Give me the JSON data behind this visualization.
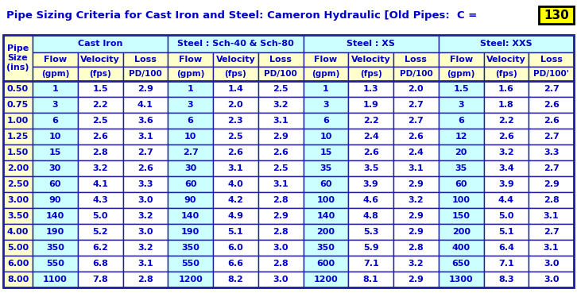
{
  "title": "Pipe Sizing Criteria for Cast Iron and Steel: Cameron Hydraulic [Old Pipes:  C =",
  "c_value": "130",
  "col_groups": [
    {
      "label": "Cast Iron",
      "span": 3
    },
    {
      "label": "Steel : Sch-40 & Sch-80",
      "span": 3
    },
    {
      "label": "Steel : XS",
      "span": 3
    },
    {
      "label": "Steel: XXS",
      "span": 3
    }
  ],
  "sub_headers": [
    "Flow",
    "Velocity",
    "Loss",
    "Flow",
    "Velocity",
    "Loss",
    "Flow",
    "Velocity",
    "Loss",
    "Flow",
    "Velocity",
    "Loss"
  ],
  "sub_headers2": [
    "(gpm)",
    "(fps)",
    "PD/100",
    "(gpm)",
    "(fps)",
    "PD/100",
    "(gpm)",
    "(fps)",
    "PD/100",
    "(gpm)",
    "(fps)",
    "PD/100'"
  ],
  "pipe_sizes": [
    "0.50",
    "0.75",
    "1.00",
    "1.25",
    "1.50",
    "2.00",
    "2.50",
    "3.00",
    "3.50",
    "4.00",
    "5.00",
    "6.00",
    "8.00"
  ],
  "data": [
    [
      "1",
      "1.5",
      "2.9",
      "1",
      "1.4",
      "2.5",
      "1",
      "1.3",
      "2.0",
      "1.5",
      "1.6",
      "2.7"
    ],
    [
      "3",
      "2.2",
      "4.1",
      "3",
      "2.0",
      "3.2",
      "3",
      "1.9",
      "2.7",
      "3",
      "1.8",
      "2.6"
    ],
    [
      "6",
      "2.5",
      "3.6",
      "6",
      "2.3",
      "3.1",
      "6",
      "2.2",
      "2.7",
      "6",
      "2.2",
      "2.6"
    ],
    [
      "10",
      "2.6",
      "3.1",
      "10",
      "2.5",
      "2.9",
      "10",
      "2.4",
      "2.6",
      "12",
      "2.6",
      "2.7"
    ],
    [
      "15",
      "2.8",
      "2.7",
      "2.7",
      "2.6",
      "2.6",
      "15",
      "2.6",
      "2.4",
      "20",
      "3.2",
      "3.3"
    ],
    [
      "30",
      "3.2",
      "2.6",
      "30",
      "3.1",
      "2.5",
      "35",
      "3.5",
      "3.1",
      "35",
      "3.4",
      "2.7"
    ],
    [
      "60",
      "4.1",
      "3.3",
      "60",
      "4.0",
      "3.1",
      "60",
      "3.9",
      "2.9",
      "60",
      "3.9",
      "2.9"
    ],
    [
      "90",
      "4.3",
      "3.0",
      "90",
      "4.2",
      "2.8",
      "100",
      "4.6",
      "3.2",
      "100",
      "4.4",
      "2.8"
    ],
    [
      "140",
      "5.0",
      "3.2",
      "140",
      "4.9",
      "2.9",
      "140",
      "4.8",
      "2.9",
      "150",
      "5.0",
      "3.1"
    ],
    [
      "190",
      "5.2",
      "3.0",
      "190",
      "5.1",
      "2.8",
      "200",
      "5.3",
      "2.9",
      "200",
      "5.1",
      "2.7"
    ],
    [
      "350",
      "6.2",
      "3.2",
      "350",
      "6.0",
      "3.0",
      "350",
      "5.9",
      "2.8",
      "400",
      "6.4",
      "3.1"
    ],
    [
      "550",
      "6.8",
      "3.1",
      "550",
      "6.6",
      "2.8",
      "600",
      "7.1",
      "3.2",
      "650",
      "7.1",
      "3.0"
    ],
    [
      "1100",
      "7.8",
      "2.8",
      "1200",
      "8.2",
      "3.0",
      "1200",
      "8.1",
      "2.9",
      "1300",
      "8.3",
      "3.0"
    ]
  ],
  "pipe_col_bg": "#FFFFCC",
  "group_header_bg": "#CCFFFF",
  "col_header_bg": "#FFFFCC",
  "data_cyan_bg": "#CCFFFF",
  "data_white_bg": "#FFFFFF",
  "border_color": "#1F1F9F",
  "text_color": "#0000CC",
  "title_color": "#0000CC",
  "c_box_fill": "#FFFF00",
  "c_box_border": "#000000",
  "title_fontsize": 9.5,
  "header_fontsize": 8.0,
  "data_fontsize": 8.0,
  "pipe_size_fontsize": 8.0,
  "c_fontsize": 11
}
